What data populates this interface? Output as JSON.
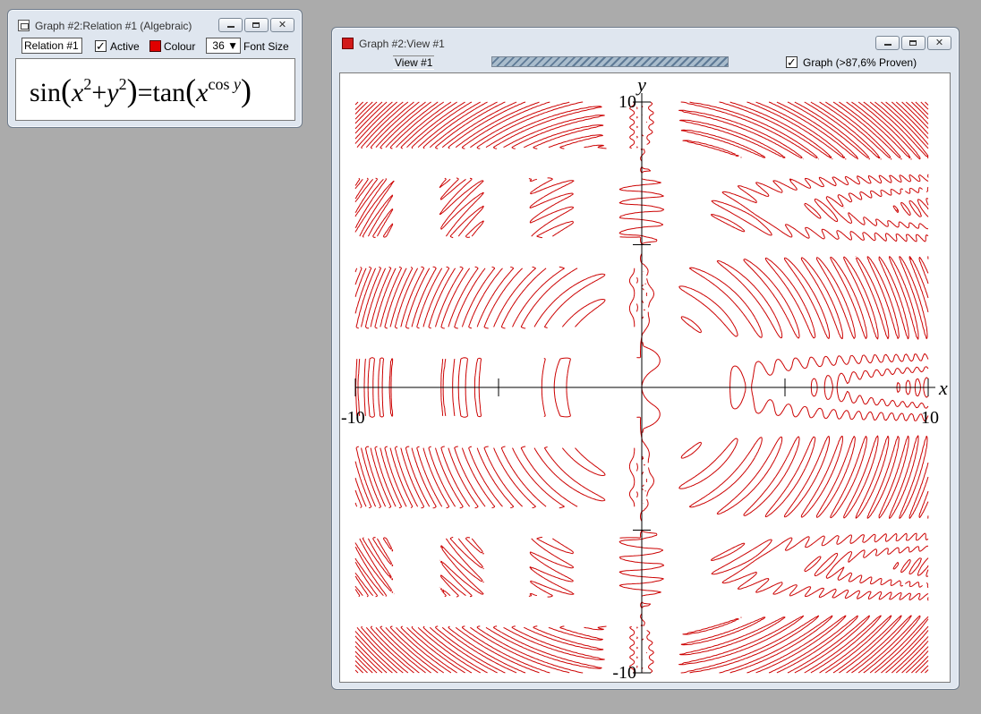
{
  "relation_window": {
    "title": "Graph #2:Relation #1 (Algebraic)",
    "relation_name": "Relation #1",
    "active_label": "Active",
    "active_checked": true,
    "colour_label": "Colour",
    "colour": "#e00000",
    "font_size_value": "36",
    "font_size_label": "Font Size",
    "formula": {
      "sin": "sin",
      "x": "x",
      "exp1": "2",
      "plus": "+",
      "y": "y",
      "exp2": "2",
      "eq": "=",
      "tan": "tan",
      "x2": "x",
      "cos": "cos",
      "y2": "y"
    }
  },
  "view_window": {
    "title": "Graph #2:View #1",
    "tab_label": "View #1",
    "graph_checked": true,
    "graph_label": "Graph (>87,6% Proven)",
    "proven_percent": 87.6
  },
  "chart_data": {
    "type": "implicit-relation",
    "equation": "sin(x^2+y^2)=tan(x^(cos y))",
    "xlim": [
      -10,
      10
    ],
    "ylim": [
      -10,
      10
    ],
    "x_axis_label": "x",
    "y_axis_label": "y",
    "tick_labels": {
      "x_min": "-10",
      "x_max": "10",
      "y_min": "-10",
      "y_max": "10"
    },
    "curve_color": "#cc0000"
  }
}
